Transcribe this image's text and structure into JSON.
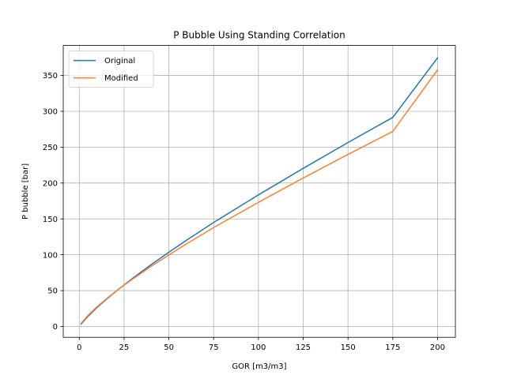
{
  "chart_data": {
    "type": "line",
    "title": "P Bubble Using Standing Correlation",
    "xlabel": "GOR [m3/m3]",
    "ylabel": "P bubble [bar]",
    "xlim": [
      -8.95,
      209.95
    ],
    "ylim": [
      -15.1,
      391.8
    ],
    "xticks": [
      0,
      25,
      50,
      75,
      100,
      125,
      150,
      175,
      200
    ],
    "yticks": [
      0,
      50,
      100,
      150,
      200,
      250,
      300,
      350
    ],
    "grid": true,
    "legend_position": "top-left",
    "series": [
      {
        "name": "Original",
        "color": "#1f77b4",
        "x": [
          1,
          5,
          10,
          15,
          20,
          25,
          30,
          40,
          50,
          60,
          75,
          100,
          125,
          150,
          175,
          200
        ],
        "y": [
          3.4,
          14.5,
          26.6,
          37.6,
          48.0,
          58.0,
          67.6,
          86.0,
          103.5,
          120.5,
          145.0,
          183.5,
          220.5,
          256.5,
          291.5,
          374.6
        ]
      },
      {
        "name": "Modified",
        "color": "#ff7f2e",
        "x": [
          1,
          5,
          10,
          15,
          20,
          25,
          30,
          40,
          50,
          60,
          75,
          100,
          125,
          150,
          175,
          200
        ],
        "y": [
          4.3,
          15.8,
          27.7,
          38.3,
          48.2,
          57.6,
          66.5,
          83.6,
          99.8,
          115.4,
          137.9,
          173.1,
          207.0,
          239.9,
          272.0,
          357.8
        ]
      }
    ]
  }
}
